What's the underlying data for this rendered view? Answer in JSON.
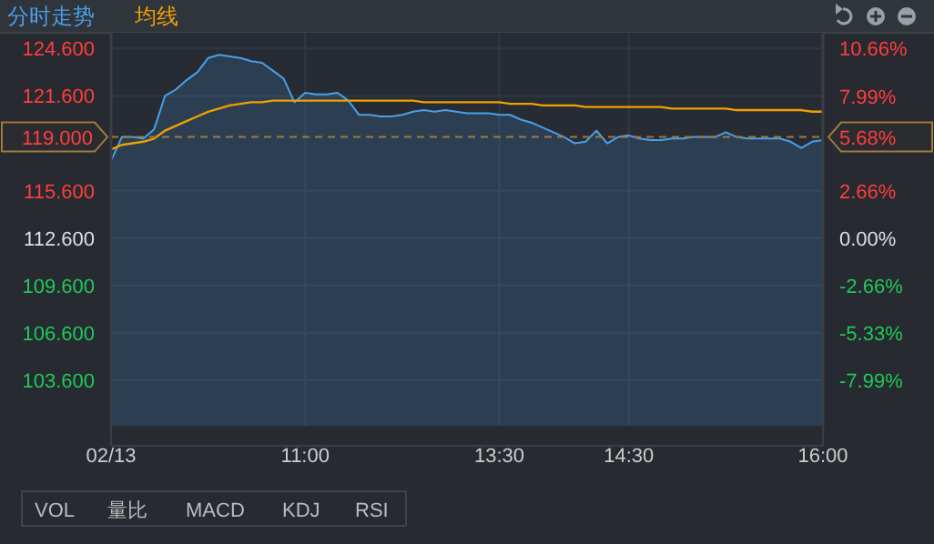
{
  "chart_data": {
    "type": "area",
    "legend": "top left",
    "grid": true,
    "categories": [
      "02/13",
      null,
      null,
      null,
      null,
      null,
      null,
      null,
      null,
      null,
      null,
      null,
      null,
      null,
      null,
      null,
      null,
      null,
      "11:00",
      null,
      null,
      null,
      null,
      null,
      null,
      null,
      null,
      null,
      null,
      null,
      null,
      null,
      null,
      null,
      null,
      null,
      "13:30",
      null,
      null,
      null,
      null,
      null,
      null,
      null,
      null,
      null,
      null,
      null,
      "14:30",
      null,
      null,
      null,
      null,
      null,
      null,
      null,
      null,
      null,
      null,
      null,
      null,
      null,
      null,
      null,
      null,
      null,
      "16:00"
    ],
    "ylim": [
      100.6,
      125.6
    ],
    "yticks": [
      {
        "value": 124.6,
        "label": "124.600"
      },
      {
        "value": 121.6,
        "label": "121.600"
      },
      {
        "value": 115.6,
        "label": "115.600"
      },
      {
        "value": 112.6,
        "label": "112.600"
      },
      {
        "value": 109.6,
        "label": "109.600"
      },
      {
        "value": 106.6,
        "label": "106.600"
      },
      {
        "value": 103.6,
        "label": "103.600"
      }
    ],
    "y2lim": [
      -10.66,
      11.55
    ],
    "y2ticks": [
      {
        "value": 10.66,
        "label": "10.66%"
      },
      {
        "value": 7.99,
        "label": "7.99%"
      },
      {
        "value": 2.66,
        "label": "2.66%"
      },
      {
        "value": 0,
        "label": "0.00%"
      },
      {
        "value": -2.66,
        "label": "-2.66%"
      },
      {
        "value": -5.33,
        "label": "-5.33%"
      },
      {
        "value": -7.99,
        "label": "-7.99%"
      }
    ],
    "ref_lines": [
      {
        "axis": "y",
        "value": 119,
        "label": "119.000",
        "color": "#a07a3c",
        "line_style": "dashed"
      }
    ],
    "series": [
      {
        "name": "分时走势",
        "type": "area",
        "color": "#4a9fe8",
        "values": [
          117.5,
          119.0,
          119.0,
          118.9,
          119.5,
          121.6,
          122.0,
          122.6,
          123.1,
          124.0,
          124.2,
          124.1,
          124.0,
          123.8,
          123.7,
          123.2,
          122.7,
          121.2,
          121.8,
          121.7,
          121.7,
          121.8,
          121.3,
          120.4,
          120.4,
          120.3,
          120.3,
          120.4,
          120.6,
          120.7,
          120.6,
          120.7,
          120.6,
          120.5,
          120.5,
          120.5,
          120.4,
          120.4,
          120.1,
          119.9,
          119.6,
          119.3,
          119.0,
          118.6,
          118.7,
          119.4,
          118.6,
          119.0,
          119.1,
          118.9,
          118.8,
          118.8,
          118.9,
          118.9,
          119.0,
          119.0,
          119.0,
          119.3,
          119.0,
          118.9,
          118.9,
          118.9,
          118.9,
          118.7,
          118.3,
          118.7,
          118.8
        ]
      },
      {
        "name": "均线",
        "type": "line",
        "color": "#f0a000",
        "values": [
          118.2,
          118.5,
          118.6,
          118.7,
          118.9,
          119.4,
          119.7,
          120.0,
          120.3,
          120.6,
          120.8,
          121.0,
          121.1,
          121.2,
          121.2,
          121.3,
          121.3,
          121.3,
          121.3,
          121.3,
          121.3,
          121.3,
          121.3,
          121.3,
          121.3,
          121.3,
          121.3,
          121.3,
          121.3,
          121.2,
          121.2,
          121.2,
          121.2,
          121.2,
          121.2,
          121.2,
          121.2,
          121.1,
          121.1,
          121.1,
          121.0,
          121.0,
          121.0,
          121.0,
          120.9,
          120.9,
          120.9,
          120.9,
          120.9,
          120.9,
          120.9,
          120.9,
          120.8,
          120.8,
          120.8,
          120.8,
          120.8,
          120.8,
          120.7,
          120.7,
          120.7,
          120.7,
          120.7,
          120.7,
          120.7,
          120.6,
          120.6
        ]
      }
    ],
    "annotations": [
      "5.68%",
      "VOL",
      "量比",
      "MACD",
      "KDJ",
      "RSI"
    ]
  }
}
